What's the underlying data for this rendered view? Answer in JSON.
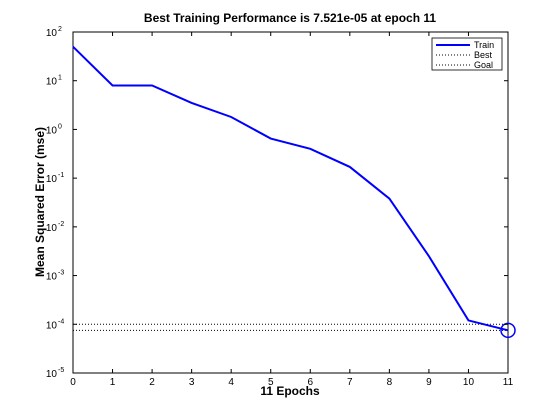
{
  "chart_data": {
    "type": "line",
    "title": "Best Training Performance is 7.521e-05 at epoch 11",
    "xlabel": "11 Epochs",
    "ylabel": "Mean Squared Error  (mse)",
    "xlim": [
      0,
      11
    ],
    "ylim": [
      1e-05,
      100
    ],
    "yscale": "log",
    "grid": false,
    "legend_position": "top-right",
    "x_ticks": [
      0,
      1,
      2,
      3,
      4,
      5,
      6,
      7,
      8,
      9,
      10,
      11
    ],
    "y_ticks": [
      {
        "base": "10",
        "exp": "-5",
        "value": 1e-05
      },
      {
        "base": "10",
        "exp": "-4",
        "value": 0.0001
      },
      {
        "base": "10",
        "exp": "-3",
        "value": 0.001
      },
      {
        "base": "10",
        "exp": "-2",
        "value": 0.01
      },
      {
        "base": "10",
        "exp": "-1",
        "value": 0.1
      },
      {
        "base": "10",
        "exp": "0",
        "value": 1
      },
      {
        "base": "10",
        "exp": "1",
        "value": 10
      },
      {
        "base": "10",
        "exp": "2",
        "value": 100
      }
    ],
    "series": [
      {
        "name": "Train",
        "color": "#0000ff",
        "x": [
          0,
          1,
          2,
          3,
          4,
          5,
          6,
          7,
          8,
          9,
          10,
          11
        ],
        "values": [
          50,
          8,
          8,
          3.5,
          1.8,
          0.65,
          0.4,
          0.17,
          0.038,
          0.0025,
          0.00012,
          7.521e-05
        ]
      }
    ],
    "best": {
      "name": "Best",
      "epoch": 11,
      "value": 7.521e-05,
      "color": "#000000"
    },
    "goal": {
      "name": "Goal",
      "value": 0.0001,
      "color": "#000000"
    }
  }
}
